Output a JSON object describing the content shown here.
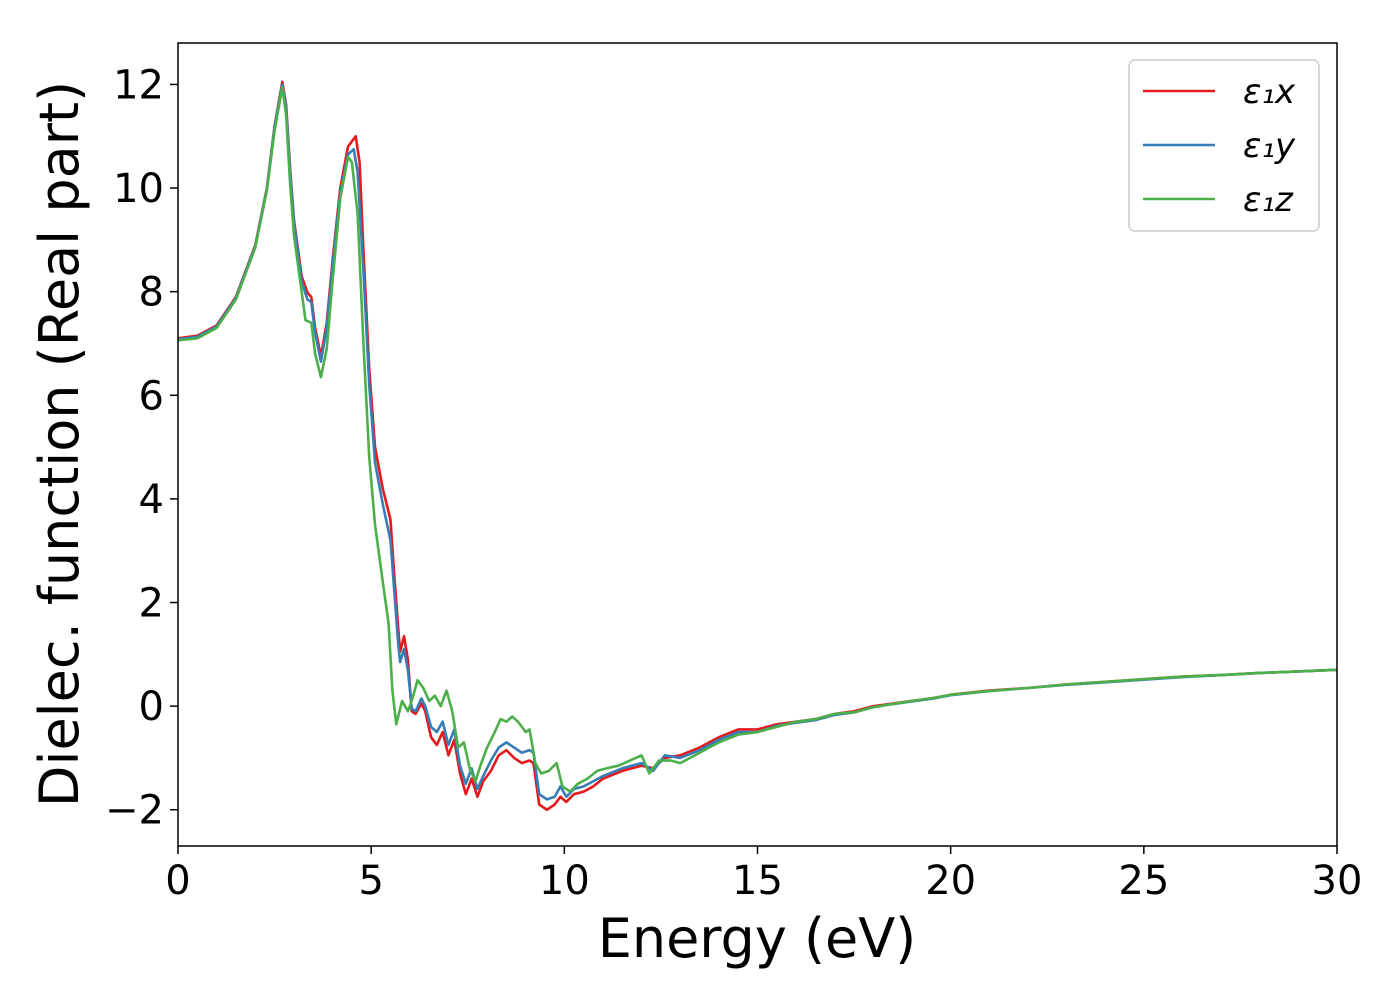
{
  "chart_data": {
    "type": "line",
    "title": "",
    "xlabel": "Energy (eV)",
    "ylabel": "Dielec. function (Real part)",
    "xlim": [
      0,
      30
    ],
    "ylim": [
      -2.7,
      12.8
    ],
    "xticks": [
      0,
      5,
      10,
      15,
      20,
      25,
      30
    ],
    "xtick_labels": [
      "0",
      "5",
      "10",
      "15",
      "20",
      "25",
      "30"
    ],
    "yticks": [
      -2,
      0,
      2,
      4,
      6,
      8,
      10,
      12
    ],
    "ytick_labels": [
      "−2",
      "0",
      "2",
      "4",
      "6",
      "8",
      "10",
      "12"
    ],
    "grid": false,
    "legend_position": "top-right",
    "series": [
      {
        "name": "ε₁x",
        "color": "#e41a1c",
        "points": [
          [
            0,
            7.1
          ],
          [
            0.5,
            7.15
          ],
          [
            1.0,
            7.35
          ],
          [
            1.5,
            7.9
          ],
          [
            2.0,
            8.9
          ],
          [
            2.3,
            10.0
          ],
          [
            2.5,
            11.2
          ],
          [
            2.7,
            12.05
          ],
          [
            2.8,
            11.6
          ],
          [
            2.9,
            10.4
          ],
          [
            3.0,
            9.4
          ],
          [
            3.2,
            8.3
          ],
          [
            3.35,
            7.98
          ],
          [
            3.45,
            7.9
          ],
          [
            3.55,
            7.3
          ],
          [
            3.7,
            6.75
          ],
          [
            3.85,
            7.4
          ],
          [
            4.0,
            8.6
          ],
          [
            4.2,
            10.0
          ],
          [
            4.4,
            10.8
          ],
          [
            4.6,
            11.0
          ],
          [
            4.7,
            10.5
          ],
          [
            4.8,
            8.8
          ],
          [
            4.95,
            6.5
          ],
          [
            5.1,
            5.0
          ],
          [
            5.3,
            4.2
          ],
          [
            5.5,
            3.6
          ],
          [
            5.6,
            2.5
          ],
          [
            5.7,
            1.5
          ],
          [
            5.75,
            1.05
          ],
          [
            5.85,
            1.35
          ],
          [
            5.95,
            0.9
          ],
          [
            6.05,
            -0.1
          ],
          [
            6.15,
            -0.15
          ],
          [
            6.3,
            0.05
          ],
          [
            6.4,
            -0.1
          ],
          [
            6.55,
            -0.6
          ],
          [
            6.7,
            -0.75
          ],
          [
            6.85,
            -0.5
          ],
          [
            7.0,
            -0.95
          ],
          [
            7.15,
            -0.65
          ],
          [
            7.3,
            -1.3
          ],
          [
            7.45,
            -1.7
          ],
          [
            7.6,
            -1.4
          ],
          [
            7.75,
            -1.75
          ],
          [
            7.9,
            -1.45
          ],
          [
            8.1,
            -1.25
          ],
          [
            8.3,
            -0.95
          ],
          [
            8.5,
            -0.85
          ],
          [
            8.7,
            -1.0
          ],
          [
            8.9,
            -1.1
          ],
          [
            9.1,
            -1.05
          ],
          [
            9.2,
            -1.1
          ],
          [
            9.35,
            -1.9
          ],
          [
            9.55,
            -2.0
          ],
          [
            9.75,
            -1.9
          ],
          [
            9.9,
            -1.75
          ],
          [
            10.05,
            -1.85
          ],
          [
            10.25,
            -1.7
          ],
          [
            10.5,
            -1.65
          ],
          [
            10.75,
            -1.55
          ],
          [
            11.0,
            -1.4
          ],
          [
            11.5,
            -1.25
          ],
          [
            12.0,
            -1.15
          ],
          [
            12.3,
            -1.2
          ],
          [
            12.6,
            -1.0
          ],
          [
            13.0,
            -0.95
          ],
          [
            13.5,
            -0.8
          ],
          [
            14.0,
            -0.6
          ],
          [
            14.5,
            -0.45
          ],
          [
            15.0,
            -0.45
          ],
          [
            15.5,
            -0.35
          ],
          [
            16.0,
            -0.3
          ],
          [
            16.5,
            -0.25
          ],
          [
            17.0,
            -0.15
          ],
          [
            17.5,
            -0.1
          ],
          [
            18.0,
            0.0
          ],
          [
            18.5,
            0.05
          ],
          [
            19.0,
            0.1
          ],
          [
            19.5,
            0.15
          ],
          [
            20.0,
            0.22
          ],
          [
            21.0,
            0.3
          ],
          [
            22.0,
            0.35
          ],
          [
            23.0,
            0.42
          ],
          [
            24.0,
            0.47
          ],
          [
            25.0,
            0.52
          ],
          [
            26.0,
            0.57
          ],
          [
            27.0,
            0.6
          ],
          [
            28.0,
            0.64
          ],
          [
            29.0,
            0.67
          ],
          [
            30.0,
            0.7
          ]
        ]
      },
      {
        "name": "ε₁y",
        "color": "#377eb8",
        "points": [
          [
            0,
            7.08
          ],
          [
            0.5,
            7.13
          ],
          [
            1.0,
            7.33
          ],
          [
            1.5,
            7.88
          ],
          [
            2.0,
            8.88
          ],
          [
            2.3,
            9.98
          ],
          [
            2.5,
            11.18
          ],
          [
            2.7,
            12.0
          ],
          [
            2.8,
            11.55
          ],
          [
            2.9,
            10.35
          ],
          [
            3.0,
            9.35
          ],
          [
            3.2,
            8.2
          ],
          [
            3.35,
            7.85
          ],
          [
            3.45,
            7.8
          ],
          [
            3.55,
            7.2
          ],
          [
            3.7,
            6.65
          ],
          [
            3.85,
            7.3
          ],
          [
            4.0,
            8.5
          ],
          [
            4.2,
            9.9
          ],
          [
            4.4,
            10.65
          ],
          [
            4.55,
            10.75
          ],
          [
            4.65,
            10.3
          ],
          [
            4.8,
            8.4
          ],
          [
            4.95,
            6.2
          ],
          [
            5.1,
            4.7
          ],
          [
            5.3,
            3.9
          ],
          [
            5.5,
            3.2
          ],
          [
            5.6,
            2.2
          ],
          [
            5.7,
            1.2
          ],
          [
            5.75,
            0.85
          ],
          [
            5.85,
            1.1
          ],
          [
            5.95,
            0.7
          ],
          [
            6.05,
            -0.05
          ],
          [
            6.15,
            -0.1
          ],
          [
            6.3,
            0.15
          ],
          [
            6.4,
            0.0
          ],
          [
            6.55,
            -0.4
          ],
          [
            6.7,
            -0.5
          ],
          [
            6.85,
            -0.3
          ],
          [
            7.0,
            -0.75
          ],
          [
            7.15,
            -0.45
          ],
          [
            7.3,
            -1.15
          ],
          [
            7.45,
            -1.5
          ],
          [
            7.6,
            -1.2
          ],
          [
            7.75,
            -1.6
          ],
          [
            7.9,
            -1.35
          ],
          [
            8.1,
            -1.05
          ],
          [
            8.3,
            -0.8
          ],
          [
            8.5,
            -0.7
          ],
          [
            8.7,
            -0.8
          ],
          [
            8.9,
            -0.9
          ],
          [
            9.1,
            -0.85
          ],
          [
            9.2,
            -0.9
          ],
          [
            9.35,
            -1.7
          ],
          [
            9.55,
            -1.8
          ],
          [
            9.75,
            -1.75
          ],
          [
            9.9,
            -1.55
          ],
          [
            10.05,
            -1.75
          ],
          [
            10.25,
            -1.6
          ],
          [
            10.5,
            -1.55
          ],
          [
            10.75,
            -1.45
          ],
          [
            11.0,
            -1.35
          ],
          [
            11.5,
            -1.2
          ],
          [
            12.0,
            -1.1
          ],
          [
            12.3,
            -1.25
          ],
          [
            12.6,
            -0.95
          ],
          [
            13.0,
            -1.0
          ],
          [
            13.5,
            -0.85
          ],
          [
            14.0,
            -0.65
          ],
          [
            14.5,
            -0.5
          ],
          [
            15.0,
            -0.5
          ],
          [
            15.5,
            -0.38
          ],
          [
            16.0,
            -0.32
          ],
          [
            16.5,
            -0.27
          ],
          [
            17.0,
            -0.17
          ],
          [
            17.5,
            -0.12
          ],
          [
            18.0,
            -0.02
          ],
          [
            18.5,
            0.04
          ],
          [
            19.0,
            0.09
          ],
          [
            19.5,
            0.14
          ],
          [
            20.0,
            0.21
          ],
          [
            21.0,
            0.29
          ],
          [
            22.0,
            0.35
          ],
          [
            23.0,
            0.41
          ],
          [
            24.0,
            0.46
          ],
          [
            25.0,
            0.51
          ],
          [
            26.0,
            0.56
          ],
          [
            27.0,
            0.6
          ],
          [
            28.0,
            0.64
          ],
          [
            29.0,
            0.67
          ],
          [
            30.0,
            0.7
          ]
        ]
      },
      {
        "name": "ε₁z",
        "color": "#4daf4a",
        "points": [
          [
            0,
            7.06
          ],
          [
            0.5,
            7.1
          ],
          [
            1.0,
            7.3
          ],
          [
            1.5,
            7.85
          ],
          [
            2.0,
            8.85
          ],
          [
            2.3,
            9.95
          ],
          [
            2.5,
            11.1
          ],
          [
            2.7,
            11.95
          ],
          [
            2.8,
            11.4
          ],
          [
            2.9,
            10.1
          ],
          [
            3.0,
            9.1
          ],
          [
            3.2,
            8.0
          ],
          [
            3.3,
            7.45
          ],
          [
            3.45,
            7.4
          ],
          [
            3.55,
            6.8
          ],
          [
            3.7,
            6.35
          ],
          [
            3.85,
            6.9
          ],
          [
            4.0,
            8.2
          ],
          [
            4.2,
            9.8
          ],
          [
            4.4,
            10.6
          ],
          [
            4.5,
            10.5
          ],
          [
            4.65,
            9.5
          ],
          [
            4.8,
            7.0
          ],
          [
            4.95,
            4.8
          ],
          [
            5.1,
            3.5
          ],
          [
            5.3,
            2.4
          ],
          [
            5.45,
            1.6
          ],
          [
            5.55,
            0.3
          ],
          [
            5.65,
            -0.35
          ],
          [
            5.8,
            0.1
          ],
          [
            5.95,
            -0.1
          ],
          [
            6.05,
            0.1
          ],
          [
            6.2,
            0.5
          ],
          [
            6.35,
            0.35
          ],
          [
            6.5,
            0.1
          ],
          [
            6.65,
            0.2
          ],
          [
            6.8,
            0.0
          ],
          [
            6.95,
            0.3
          ],
          [
            7.1,
            -0.1
          ],
          [
            7.25,
            -0.8
          ],
          [
            7.4,
            -0.7
          ],
          [
            7.55,
            -1.2
          ],
          [
            7.7,
            -1.45
          ],
          [
            7.85,
            -1.1
          ],
          [
            8.0,
            -0.8
          ],
          [
            8.2,
            -0.5
          ],
          [
            8.35,
            -0.25
          ],
          [
            8.5,
            -0.3
          ],
          [
            8.65,
            -0.2
          ],
          [
            8.8,
            -0.3
          ],
          [
            9.0,
            -0.5
          ],
          [
            9.1,
            -0.45
          ],
          [
            9.25,
            -1.1
          ],
          [
            9.4,
            -1.3
          ],
          [
            9.6,
            -1.25
          ],
          [
            9.8,
            -1.1
          ],
          [
            9.95,
            -1.55
          ],
          [
            10.15,
            -1.65
          ],
          [
            10.35,
            -1.5
          ],
          [
            10.6,
            -1.4
          ],
          [
            10.85,
            -1.25
          ],
          [
            11.1,
            -1.2
          ],
          [
            11.4,
            -1.15
          ],
          [
            11.7,
            -1.05
          ],
          [
            12.0,
            -0.95
          ],
          [
            12.2,
            -1.3
          ],
          [
            12.45,
            -1.05
          ],
          [
            12.75,
            -1.05
          ],
          [
            13.0,
            -1.1
          ],
          [
            13.5,
            -0.9
          ],
          [
            14.0,
            -0.7
          ],
          [
            14.5,
            -0.55
          ],
          [
            15.0,
            -0.5
          ],
          [
            15.5,
            -0.4
          ],
          [
            16.0,
            -0.3
          ],
          [
            16.5,
            -0.25
          ],
          [
            17.0,
            -0.15
          ],
          [
            17.5,
            -0.12
          ],
          [
            18.0,
            -0.02
          ],
          [
            18.5,
            0.04
          ],
          [
            19.0,
            0.1
          ],
          [
            19.5,
            0.15
          ],
          [
            20.0,
            0.22
          ],
          [
            21.0,
            0.29
          ],
          [
            22.0,
            0.35
          ],
          [
            23.0,
            0.42
          ],
          [
            24.0,
            0.47
          ],
          [
            25.0,
            0.52
          ],
          [
            26.0,
            0.57
          ],
          [
            27.0,
            0.6
          ],
          [
            28.0,
            0.64
          ],
          [
            29.0,
            0.67
          ],
          [
            30.0,
            0.7
          ]
        ]
      }
    ]
  }
}
